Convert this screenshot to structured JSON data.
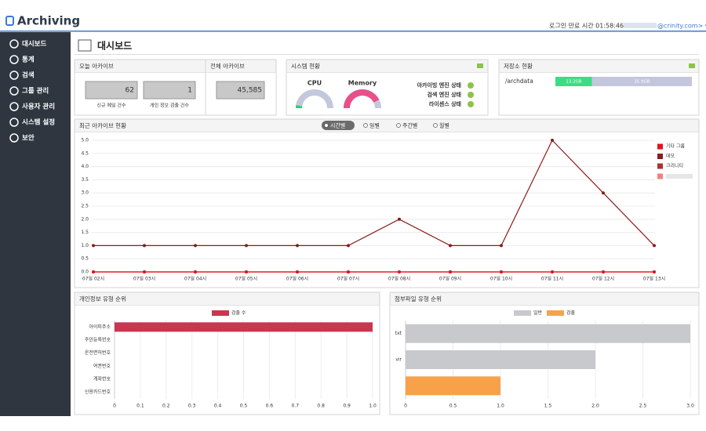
{
  "header": {
    "logo": "Archiving",
    "session": "로그인 만료 시간 01:58:46",
    "user": "@crinity.com> ▾"
  },
  "sidebar": {
    "items": [
      "대시보드",
      "통계",
      "검색",
      "그룹 관리",
      "사용자 관리",
      "시스템 설정",
      "보안"
    ]
  },
  "page_title": "대시보드",
  "today": {
    "title": "오늘 아카이브",
    "boxes": [
      {
        "value": 62,
        "label": "신규 메일 건수"
      },
      {
        "value": 1,
        "label": "개인 정보 검출 건수"
      }
    ]
  },
  "total": {
    "title": "전체 아카이브",
    "value": "45,585"
  },
  "system": {
    "title": "시스템 현황",
    "gauges": [
      {
        "label": "CPU",
        "value": 5
      },
      {
        "label": "Memory",
        "value": 85
      }
    ],
    "statuses": [
      "아카이빙 엔진 상태",
      "검색 엔진 상태",
      "라이센스 상태"
    ]
  },
  "storage": {
    "title": "저장소 현황",
    "path": "/archdata",
    "used": 13.2,
    "free": 35.9,
    "used_label": "13.2GB",
    "free_label": "35.9GB"
  },
  "chart_data": [
    {
      "type": "line",
      "title": "최근 아카이브 현황",
      "options": [
        "시간별",
        "일별",
        "주간별",
        "월별"
      ],
      "selected": 0,
      "categories": [
        "07일 02시",
        "07일 03시",
        "07일 04시",
        "07일 05시",
        "07일 06시",
        "07일 07시",
        "07일 08시",
        "07일 09시",
        "07일 10시",
        "07일 11시",
        "07일 12시",
        "07일 13시"
      ],
      "series": [
        {
          "name": "기타 그룹",
          "color": "#e8101a",
          "values": [
            0,
            0,
            0,
            0,
            0,
            0,
            0,
            0,
            0,
            0,
            0,
            0
          ]
        },
        {
          "name": "데모",
          "color": "#8b1a1a",
          "values": [
            1,
            1,
            1,
            1,
            1,
            1,
            2,
            1,
            1,
            5,
            3,
            1
          ]
        },
        {
          "name": "크리니티",
          "color": "#b03030",
          "values": [
            0,
            0,
            0,
            0,
            0,
            0,
            0,
            0,
            0,
            0,
            0,
            0
          ]
        }
      ],
      "ylim": [
        0,
        5
      ],
      "yticks": [
        {
          "value": 0,
          "label": "0.0"
        },
        {
          "value": 0.5,
          "label": "0.5"
        },
        {
          "value": 1,
          "label": "1.0"
        },
        {
          "value": 1.5,
          "label": "1.5"
        },
        {
          "value": 2,
          "label": "2.0"
        },
        {
          "value": 2.5,
          "label": "2.5"
        },
        {
          "value": 3,
          "label": "3.0"
        },
        {
          "value": 3.5,
          "label": "3.5"
        },
        {
          "value": 4,
          "label": "4.0"
        },
        {
          "value": 4.5,
          "label": "4.5"
        },
        {
          "value": 5,
          "label": "5.0"
        }
      ],
      "grid": true
    },
    {
      "type": "hbar",
      "title": "개인정보 유형 순위",
      "categories": [
        "아이피주소",
        "주민등록번호",
        "운전면허번호",
        "여권번호",
        "계좌번호",
        "신용카드번호"
      ],
      "series": [
        {
          "name": "검출 수",
          "color": "#c8364f",
          "values": [
            1,
            0,
            0,
            0,
            0,
            0
          ]
        }
      ],
      "xlim": [
        0,
        1
      ],
      "xticks": [
        0,
        0.1,
        0.2,
        0.3,
        0.4,
        0.5,
        0.6,
        0.7,
        0.8,
        0.9,
        {
          "value": 1,
          "label": "1.0"
        }
      ],
      "grid": true
    },
    {
      "type": "hbar",
      "title": "첨부파일 유형 순위",
      "categories": [
        "txt",
        "vir",
        null
      ],
      "series": [
        {
          "name": "일반",
          "color": "#c8c9cc",
          "values": [
            3,
            2,
            0
          ]
        },
        {
          "name": "검출",
          "color": "#f7a24a",
          "values": [
            0,
            0,
            1
          ]
        }
      ],
      "xlim": [
        0,
        3
      ],
      "xticks": [
        0,
        0.5,
        {
          "value": 1,
          "label": "1.0"
        },
        1.5,
        {
          "value": 2,
          "label": "2.0"
        },
        2.5,
        {
          "value": 3,
          "label": "3.0"
        }
      ],
      "grid": true
    }
  ]
}
